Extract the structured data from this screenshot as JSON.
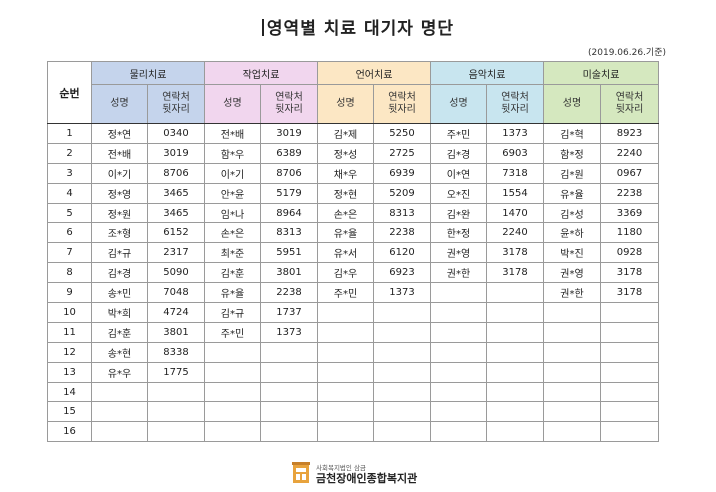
{
  "title": "영역별 치료 대기자 명단",
  "date": "(2019.06.26.기준)",
  "header": {
    "seq_label": "순번",
    "name_label": "성명",
    "phone_label": "연락처\n뒷자리",
    "categories": [
      "물리치료",
      "작업치료",
      "언어치료",
      "음악치료",
      "미술치료"
    ]
  },
  "colors": {
    "physical": "#c5d4ec",
    "occupational": "#f1d6ee",
    "language": "#fce7c4",
    "music": "#c8e5ef",
    "art": "#d5e8bf"
  },
  "rows": [
    {
      "seq": "1",
      "cells": [
        [
          "정*연",
          "0340"
        ],
        [
          "전*배",
          "3019"
        ],
        [
          "김*제",
          "5250"
        ],
        [
          "주*민",
          "1373"
        ],
        [
          "김*혁",
          "8923"
        ]
      ]
    },
    {
      "seq": "2",
      "cells": [
        [
          "전*배",
          "3019"
        ],
        [
          "함*우",
          "6389"
        ],
        [
          "정*성",
          "2725"
        ],
        [
          "김*경",
          "6903"
        ],
        [
          "함*정",
          "2240"
        ]
      ]
    },
    {
      "seq": "3",
      "cells": [
        [
          "이*기",
          "8706"
        ],
        [
          "이*기",
          "8706"
        ],
        [
          "채*우",
          "6939"
        ],
        [
          "이*연",
          "7318"
        ],
        [
          "김*원",
          "0967"
        ]
      ]
    },
    {
      "seq": "4",
      "cells": [
        [
          "정*영",
          "3465"
        ],
        [
          "안*윤",
          "5179"
        ],
        [
          "정*현",
          "5209"
        ],
        [
          "오*진",
          "1554"
        ],
        [
          "유*율",
          "2238"
        ]
      ]
    },
    {
      "seq": "5",
      "cells": [
        [
          "정*원",
          "3465"
        ],
        [
          "임*나",
          "8964"
        ],
        [
          "손*은",
          "8313"
        ],
        [
          "김*완",
          "1470"
        ],
        [
          "김*성",
          "3369"
        ]
      ]
    },
    {
      "seq": "6",
      "cells": [
        [
          "조*형",
          "6152"
        ],
        [
          "손*은",
          "8313"
        ],
        [
          "유*율",
          "2238"
        ],
        [
          "한*정",
          "2240"
        ],
        [
          "윤*하",
          "1180"
        ]
      ]
    },
    {
      "seq": "7",
      "cells": [
        [
          "김*규",
          "2317"
        ],
        [
          "최*준",
          "5951"
        ],
        [
          "유*서",
          "6120"
        ],
        [
          "권*영",
          "3178"
        ],
        [
          "박*진",
          "0928"
        ]
      ]
    },
    {
      "seq": "8",
      "cells": [
        [
          "김*경",
          "5090"
        ],
        [
          "김*훈",
          "3801"
        ],
        [
          "김*우",
          "6923"
        ],
        [
          "권*한",
          "3178"
        ],
        [
          "권*영",
          "3178"
        ]
      ]
    },
    {
      "seq": "9",
      "cells": [
        [
          "송*민",
          "7048"
        ],
        [
          "유*율",
          "2238"
        ],
        [
          "주*민",
          "1373"
        ],
        [
          "",
          ""
        ],
        [
          "권*한",
          "3178"
        ]
      ]
    },
    {
      "seq": "10",
      "cells": [
        [
          "박*희",
          "4724"
        ],
        [
          "김*규",
          "1737"
        ],
        [
          "",
          ""
        ],
        [
          "",
          ""
        ],
        [
          "",
          ""
        ]
      ]
    },
    {
      "seq": "11",
      "cells": [
        [
          "김*훈",
          "3801"
        ],
        [
          "주*민",
          "1373"
        ],
        [
          "",
          ""
        ],
        [
          "",
          ""
        ],
        [
          "",
          ""
        ]
      ]
    },
    {
      "seq": "12",
      "cells": [
        [
          "송*현",
          "8338"
        ],
        [
          "",
          ""
        ],
        [
          "",
          ""
        ],
        [
          "",
          ""
        ],
        [
          "",
          ""
        ]
      ]
    },
    {
      "seq": "13",
      "cells": [
        [
          "유*우",
          "1775"
        ],
        [
          "",
          ""
        ],
        [
          "",
          ""
        ],
        [
          "",
          ""
        ],
        [
          "",
          ""
        ]
      ]
    },
    {
      "seq": "14",
      "cells": [
        [
          "",
          ""
        ],
        [
          "",
          ""
        ],
        [
          "",
          ""
        ],
        [
          "",
          ""
        ],
        [
          "",
          ""
        ]
      ]
    },
    {
      "seq": "15",
      "cells": [
        [
          "",
          ""
        ],
        [
          "",
          ""
        ],
        [
          "",
          ""
        ],
        [
          "",
          ""
        ],
        [
          "",
          ""
        ]
      ]
    },
    {
      "seq": "16",
      "cells": [
        [
          "",
          ""
        ],
        [
          "",
          ""
        ],
        [
          "",
          ""
        ],
        [
          "",
          ""
        ],
        [
          "",
          ""
        ]
      ]
    }
  ],
  "footer": {
    "org_sub": "사회복지법인 삼금",
    "org_name": "금천장애인종합복지관",
    "logo_icon": "building-logo-icon"
  }
}
